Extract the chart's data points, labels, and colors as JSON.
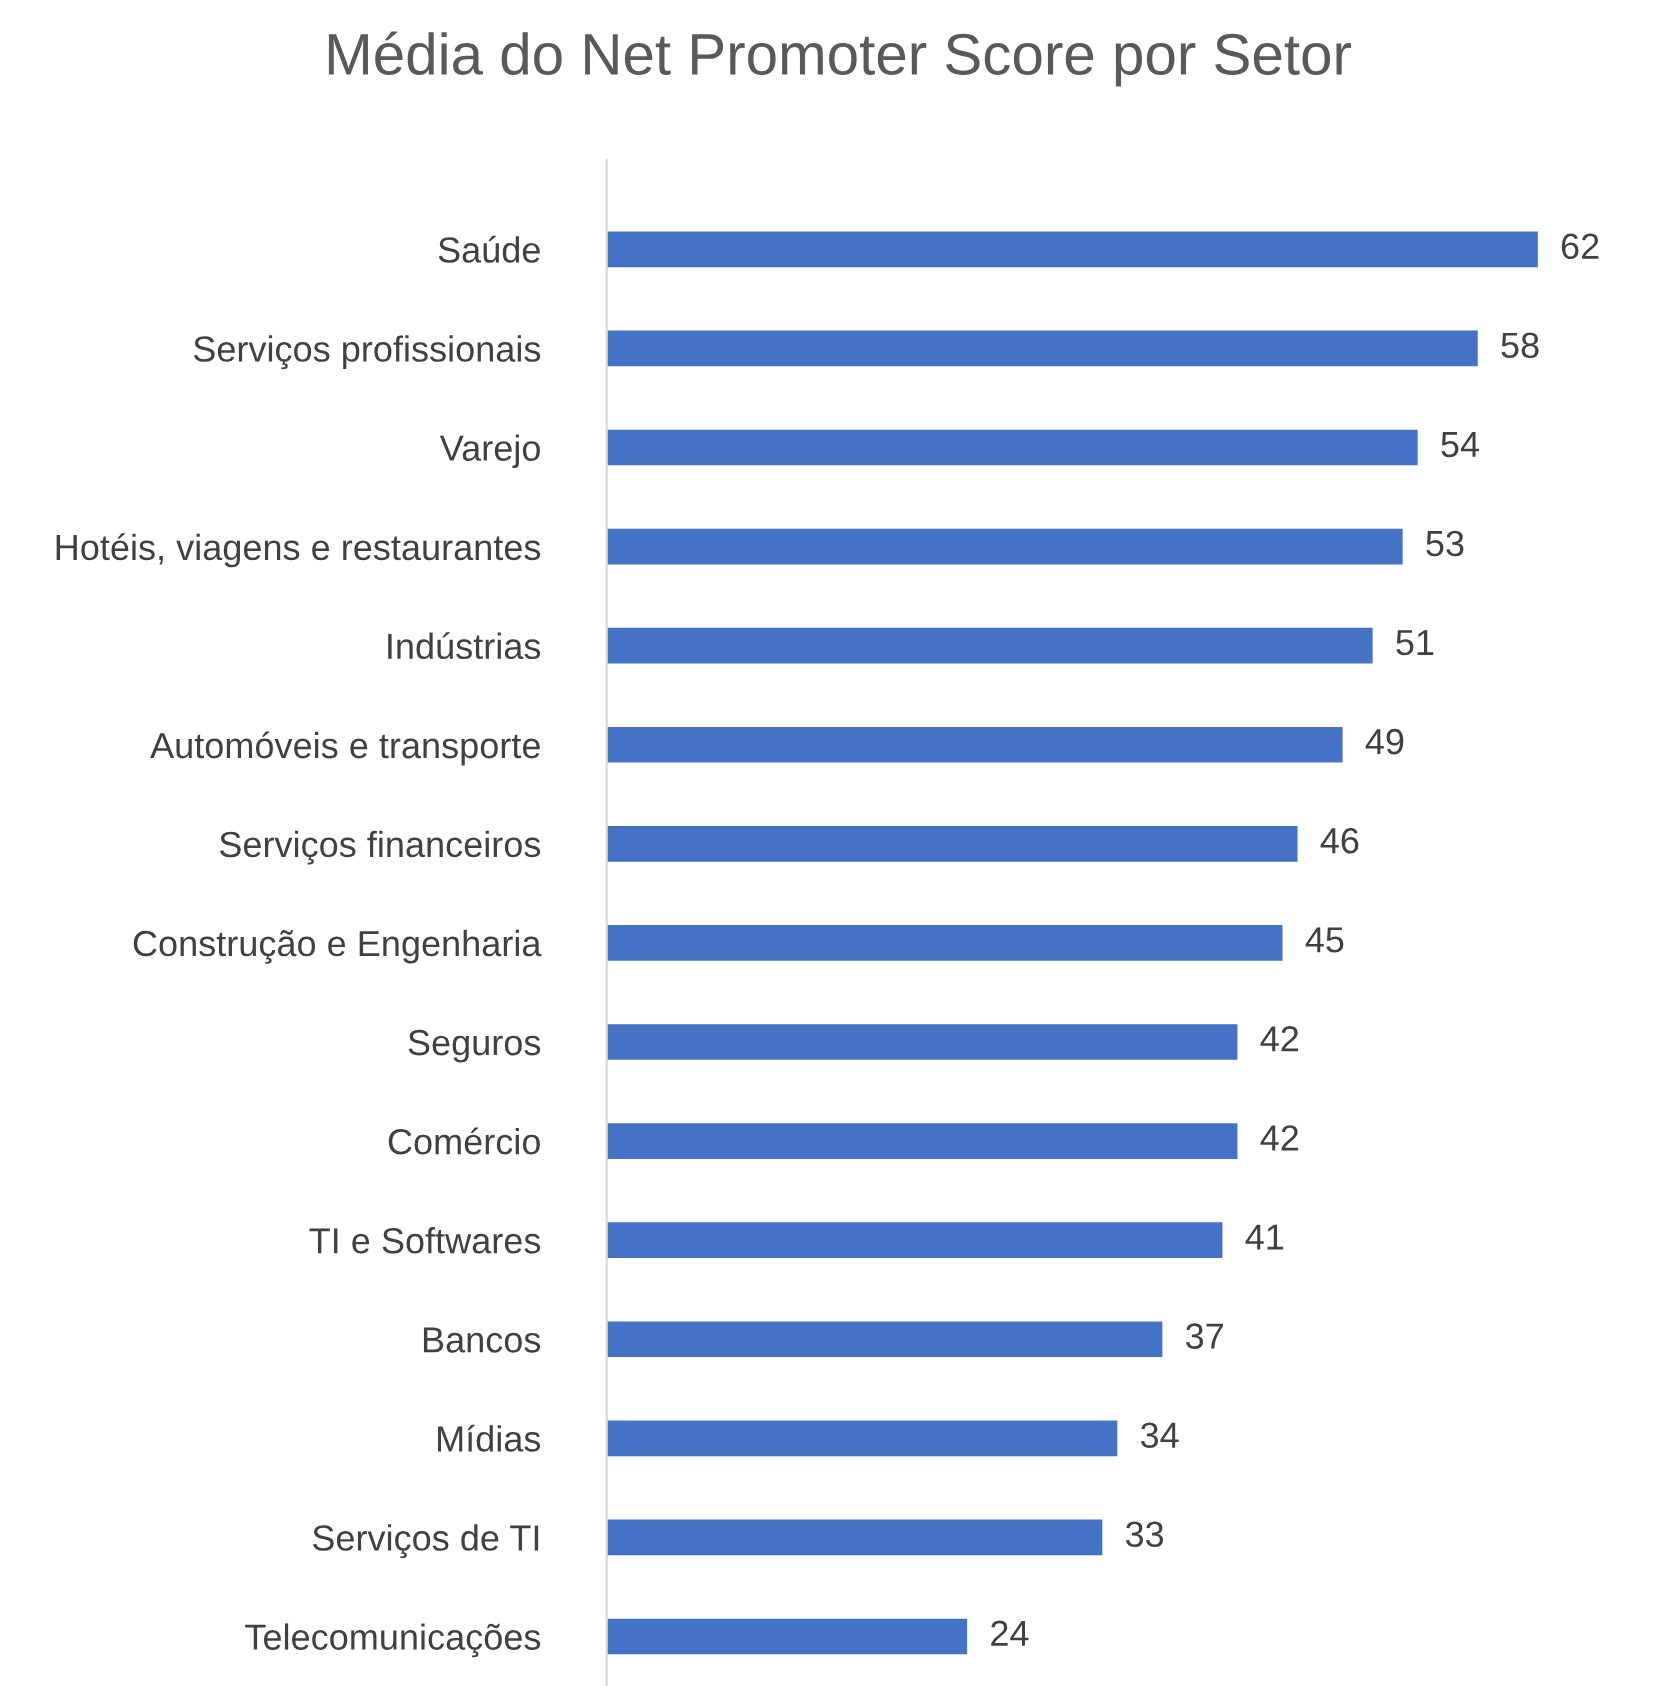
{
  "chart_data": {
    "type": "bar",
    "orientation": "horizontal",
    "title": "Média do Net Promoter Score por Setor",
    "categories": [
      "Saúde",
      "Serviços profissionais",
      "Varejo",
      "Hotéis, viagens e restaurantes",
      "Indústrias",
      "Automóveis e transporte",
      "Serviços financeiros",
      "Construção e Engenharia",
      "Seguros",
      "Comércio",
      "TI e Softwares",
      "Bancos",
      "Mídias",
      "Serviços de TI",
      "Telecomunicações"
    ],
    "values": [
      62,
      58,
      54,
      53,
      51,
      49,
      46,
      45,
      42,
      42,
      41,
      37,
      34,
      33,
      24
    ],
    "color": "#4472c4",
    "data_labels": true,
    "tick_labels": "y",
    "grid": false,
    "legend": false
  }
}
